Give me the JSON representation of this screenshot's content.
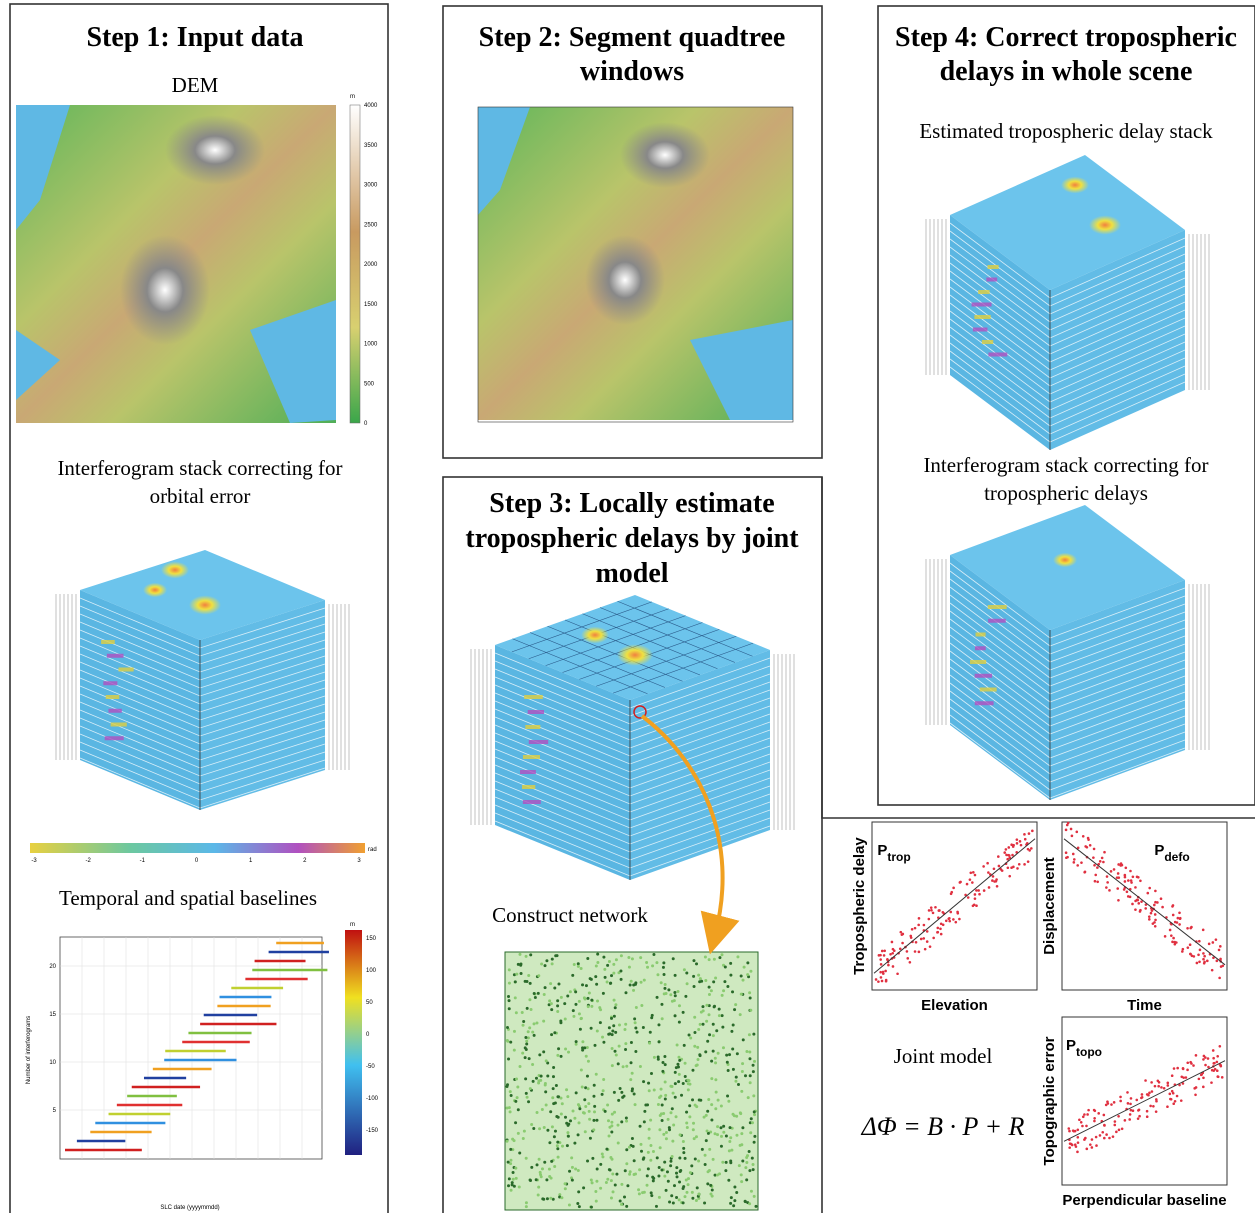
{
  "step1": {
    "title": "Step 1: Input data",
    "dem_label": "DEM",
    "dem_colorbar": {
      "unit": "m",
      "ticks": [
        "0",
        "500",
        "1000",
        "1500",
        "2000",
        "2500",
        "3000",
        "3500",
        "4000"
      ]
    },
    "stack_label": [
      "Interferogram stack correcting for",
      "orbital error"
    ],
    "phase_colorbar": {
      "unit": "rad",
      "ticks": [
        "-3",
        "-2",
        "-1",
        "0",
        "1",
        "2",
        "3"
      ]
    },
    "baseline_label": "Temporal and spatial baselines",
    "baseline_plot": {
      "ylabel": "Number of interferograms",
      "xlabel": "SLC date (yyyymmdd)",
      "yticks": [
        "5",
        "10",
        "15",
        "20"
      ],
      "colorbar_unit": "m",
      "colorbar_ticks": [
        "150",
        "100",
        "50",
        "0",
        "-50",
        "-100",
        "-150"
      ]
    }
  },
  "step2": {
    "title": [
      "Step 2: Segment quadtree",
      "windows"
    ]
  },
  "step3": {
    "title": [
      "Step 3: Locally estimate",
      "tropospheric delays by joint",
      "model"
    ],
    "network_label": "Construct network"
  },
  "step4": {
    "title": [
      "Step 4: Correct tropospheric",
      "delays in whole scene"
    ],
    "stack_label": "Estimated tropospheric delay stack",
    "corrected_label": [
      "Interferogram stack correcting for",
      "tropospheric delays"
    ]
  },
  "joint_model": {
    "label": "Joint model",
    "equation": "ΔΦ = B · P + R",
    "plots": [
      {
        "ylabel": "Tropospheric delay",
        "xlabel": "Elevation",
        "param": {
          "base": "P",
          "sub": "trop"
        }
      },
      {
        "ylabel": "Displacement",
        "xlabel": "Time",
        "param": {
          "base": "P",
          "sub": "defo"
        }
      },
      {
        "ylabel": "Topographic error",
        "xlabel": "Perpendicular baseline",
        "param": {
          "base": "P",
          "sub": "topo"
        }
      }
    ]
  }
}
